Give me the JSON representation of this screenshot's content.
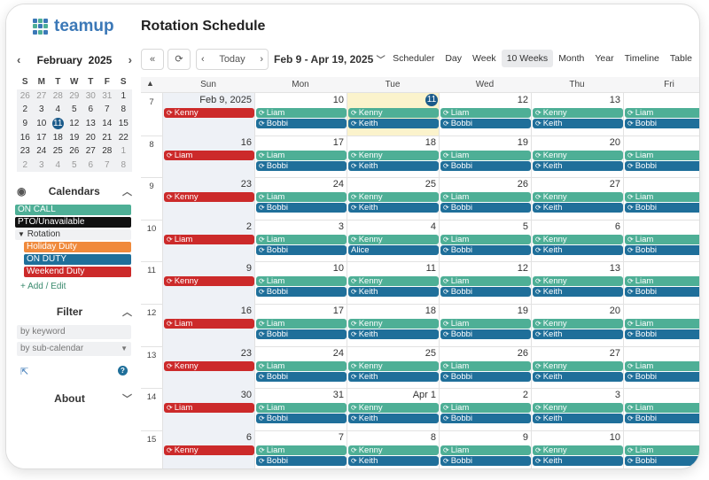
{
  "app": {
    "logo_text": "teamup",
    "page_title": "Rotation Schedule"
  },
  "colors": {
    "on_call": "#4eaf96",
    "pto": "#111111",
    "holiday_duty": "#f08a3c",
    "on_duty": "#1f6f9a",
    "weekend_duty": "#cc2a2a",
    "today": "#1a5a8a",
    "highlight": "#fbf3cc"
  },
  "mini_calendar": {
    "month": "February",
    "year": "2025",
    "dows": [
      "S",
      "M",
      "T",
      "W",
      "T",
      "F",
      "S"
    ],
    "weeks": [
      [
        {
          "d": "26",
          "o": true
        },
        {
          "d": "27",
          "o": true
        },
        {
          "d": "28",
          "o": true
        },
        {
          "d": "29",
          "o": true
        },
        {
          "d": "30",
          "o": true
        },
        {
          "d": "31",
          "o": true
        },
        {
          "d": "1"
        }
      ],
      [
        {
          "d": "2"
        },
        {
          "d": "3"
        },
        {
          "d": "4"
        },
        {
          "d": "5"
        },
        {
          "d": "6"
        },
        {
          "d": "7"
        },
        {
          "d": "8"
        }
      ],
      [
        {
          "d": "9"
        },
        {
          "d": "10"
        },
        {
          "d": "11",
          "t": true
        },
        {
          "d": "12"
        },
        {
          "d": "13"
        },
        {
          "d": "14"
        },
        {
          "d": "15"
        }
      ],
      [
        {
          "d": "16"
        },
        {
          "d": "17"
        },
        {
          "d": "18"
        },
        {
          "d": "19"
        },
        {
          "d": "20"
        },
        {
          "d": "21"
        },
        {
          "d": "22"
        }
      ],
      [
        {
          "d": "23"
        },
        {
          "d": "24"
        },
        {
          "d": "25"
        },
        {
          "d": "26"
        },
        {
          "d": "27"
        },
        {
          "d": "28"
        },
        {
          "d": "1",
          "o": true
        }
      ],
      [
        {
          "d": "2",
          "o": true
        },
        {
          "d": "3",
          "o": true
        },
        {
          "d": "4",
          "o": true
        },
        {
          "d": "5",
          "o": true
        },
        {
          "d": "6",
          "o": true
        },
        {
          "d": "7",
          "o": true
        },
        {
          "d": "8",
          "o": true
        }
      ]
    ]
  },
  "calendars": {
    "title": "Calendars",
    "items": {
      "on_call": "ON CALL",
      "pto": "PTO/Unavailable",
      "rotation": "Rotation",
      "holiday_duty": "Holiday Duty",
      "on_duty": "ON DUTY",
      "weekend_duty": "Weekend Duty"
    },
    "add_edit": "+ Add / Edit"
  },
  "filter": {
    "title": "Filter",
    "keyword_placeholder": "by keyword",
    "subcal_placeholder": "by sub-calendar"
  },
  "about": {
    "title": "About"
  },
  "toolbar": {
    "today": "Today",
    "date_range": "Feb 9 - Apr 19, 2025",
    "views": [
      "Scheduler",
      "Day",
      "Week",
      "10 Weeks",
      "Month",
      "Year",
      "Timeline",
      "Table"
    ],
    "active_view": "10 Weeks"
  },
  "grid": {
    "headers": [
      "Sun",
      "Mon",
      "Tue",
      "Wed",
      "Thu",
      "Fri"
    ],
    "weeks": [
      {
        "wk": "7",
        "days": [
          {
            "n": "Feb 9, 2025",
            "ev": [
              {
                "t": "Kenny",
                "c": "red"
              }
            ]
          },
          {
            "n": "10",
            "ev": [
              {
                "t": "Liam",
                "c": "green"
              },
              {
                "t": "Bobbi",
                "c": "blue"
              }
            ]
          },
          {
            "n": "11",
            "today": true,
            "ev": [
              {
                "t": "Kenny",
                "c": "green"
              },
              {
                "t": "Keith",
                "c": "blue"
              }
            ]
          },
          {
            "n": "12",
            "ev": [
              {
                "t": "Liam",
                "c": "green"
              },
              {
                "t": "Bobbi",
                "c": "blue"
              }
            ]
          },
          {
            "n": "13",
            "ev": [
              {
                "t": "Kenny",
                "c": "green"
              },
              {
                "t": "Keith",
                "c": "blue"
              }
            ]
          },
          {
            "n": "",
            "ev": [
              {
                "t": "Liam",
                "c": "green"
              },
              {
                "t": "Bobbi",
                "c": "blue"
              }
            ]
          }
        ]
      },
      {
        "wk": "8",
        "days": [
          {
            "n": "16",
            "ev": [
              {
                "t": "Liam",
                "c": "red"
              }
            ]
          },
          {
            "n": "17",
            "ev": [
              {
                "t": "Liam",
                "c": "green"
              },
              {
                "t": "Bobbi",
                "c": "blue"
              }
            ]
          },
          {
            "n": "18",
            "ev": [
              {
                "t": "Kenny",
                "c": "green"
              },
              {
                "t": "Keith",
                "c": "blue"
              }
            ]
          },
          {
            "n": "19",
            "ev": [
              {
                "t": "Liam",
                "c": "green"
              },
              {
                "t": "Bobbi",
                "c": "blue"
              }
            ]
          },
          {
            "n": "20",
            "ev": [
              {
                "t": "Kenny",
                "c": "green"
              },
              {
                "t": "Keith",
                "c": "blue"
              }
            ]
          },
          {
            "n": "",
            "ev": [
              {
                "t": "Liam",
                "c": "green"
              },
              {
                "t": "Bobbi",
                "c": "blue"
              }
            ]
          }
        ]
      },
      {
        "wk": "9",
        "days": [
          {
            "n": "23",
            "ev": [
              {
                "t": "Kenny",
                "c": "red"
              }
            ]
          },
          {
            "n": "24",
            "ev": [
              {
                "t": "Liam",
                "c": "green"
              },
              {
                "t": "Bobbi",
                "c": "blue"
              }
            ]
          },
          {
            "n": "25",
            "ev": [
              {
                "t": "Kenny",
                "c": "green"
              },
              {
                "t": "Keith",
                "c": "blue"
              }
            ]
          },
          {
            "n": "26",
            "ev": [
              {
                "t": "Liam",
                "c": "green"
              },
              {
                "t": "Bobbi",
                "c": "blue"
              }
            ]
          },
          {
            "n": "27",
            "ev": [
              {
                "t": "Kenny",
                "c": "green"
              },
              {
                "t": "Keith",
                "c": "blue"
              }
            ]
          },
          {
            "n": "",
            "ev": [
              {
                "t": "Liam",
                "c": "green"
              },
              {
                "t": "Bobbi",
                "c": "blue"
              }
            ]
          }
        ]
      },
      {
        "wk": "10",
        "days": [
          {
            "n": "2",
            "ev": [
              {
                "t": "Liam",
                "c": "red"
              }
            ]
          },
          {
            "n": "3",
            "ev": [
              {
                "t": "Liam",
                "c": "green"
              },
              {
                "t": "Bobbi",
                "c": "blue"
              }
            ]
          },
          {
            "n": "4",
            "ev": [
              {
                "t": "Kenny",
                "c": "green"
              },
              {
                "t": "Alice",
                "c": "blue",
                "noicon": true
              }
            ]
          },
          {
            "n": "5",
            "ev": [
              {
                "t": "Liam",
                "c": "green"
              },
              {
                "t": "Bobbi",
                "c": "blue"
              }
            ]
          },
          {
            "n": "6",
            "ev": [
              {
                "t": "Kenny",
                "c": "green"
              },
              {
                "t": "Keith",
                "c": "blue"
              }
            ]
          },
          {
            "n": "",
            "ev": [
              {
                "t": "Liam",
                "c": "green"
              },
              {
                "t": "Bobbi",
                "c": "blue"
              }
            ]
          }
        ]
      },
      {
        "wk": "11",
        "days": [
          {
            "n": "9",
            "ev": [
              {
                "t": "Kenny",
                "c": "red"
              }
            ]
          },
          {
            "n": "10",
            "ev": [
              {
                "t": "Liam",
                "c": "green"
              },
              {
                "t": "Bobbi",
                "c": "blue"
              }
            ]
          },
          {
            "n": "11",
            "ev": [
              {
                "t": "Kenny",
                "c": "green"
              },
              {
                "t": "Keith",
                "c": "blue"
              }
            ]
          },
          {
            "n": "12",
            "ev": [
              {
                "t": "Liam",
                "c": "green"
              },
              {
                "t": "Bobbi",
                "c": "blue"
              }
            ]
          },
          {
            "n": "13",
            "ev": [
              {
                "t": "Kenny",
                "c": "green"
              },
              {
                "t": "Keith",
                "c": "blue"
              }
            ]
          },
          {
            "n": "",
            "ev": [
              {
                "t": "Liam",
                "c": "green"
              },
              {
                "t": "Bobbi",
                "c": "blue"
              }
            ]
          }
        ]
      },
      {
        "wk": "12",
        "days": [
          {
            "n": "16",
            "ev": [
              {
                "t": "Liam",
                "c": "red"
              }
            ]
          },
          {
            "n": "17",
            "ev": [
              {
                "t": "Liam",
                "c": "green"
              },
              {
                "t": "Bobbi",
                "c": "blue"
              }
            ]
          },
          {
            "n": "18",
            "ev": [
              {
                "t": "Kenny",
                "c": "green"
              },
              {
                "t": "Keith",
                "c": "blue"
              }
            ]
          },
          {
            "n": "19",
            "ev": [
              {
                "t": "Liam",
                "c": "green"
              },
              {
                "t": "Bobbi",
                "c": "blue"
              }
            ]
          },
          {
            "n": "20",
            "ev": [
              {
                "t": "Kenny",
                "c": "green"
              },
              {
                "t": "Keith",
                "c": "blue"
              }
            ]
          },
          {
            "n": "",
            "ev": [
              {
                "t": "Liam",
                "c": "green"
              },
              {
                "t": "Bobbi",
                "c": "blue"
              }
            ]
          }
        ]
      },
      {
        "wk": "13",
        "days": [
          {
            "n": "23",
            "ev": [
              {
                "t": "Kenny",
                "c": "red"
              }
            ]
          },
          {
            "n": "24",
            "ev": [
              {
                "t": "Liam",
                "c": "green"
              },
              {
                "t": "Bobbi",
                "c": "blue"
              }
            ]
          },
          {
            "n": "25",
            "ev": [
              {
                "t": "Kenny",
                "c": "green"
              },
              {
                "t": "Keith",
                "c": "blue"
              }
            ]
          },
          {
            "n": "26",
            "ev": [
              {
                "t": "Liam",
                "c": "green"
              },
              {
                "t": "Bobbi",
                "c": "blue"
              }
            ]
          },
          {
            "n": "27",
            "ev": [
              {
                "t": "Kenny",
                "c": "green"
              },
              {
                "t": "Keith",
                "c": "blue"
              }
            ]
          },
          {
            "n": "",
            "ev": [
              {
                "t": "Liam",
                "c": "green"
              },
              {
                "t": "Bobbi",
                "c": "blue"
              }
            ]
          }
        ]
      },
      {
        "wk": "14",
        "days": [
          {
            "n": "30",
            "ev": [
              {
                "t": "Liam",
                "c": "red"
              }
            ]
          },
          {
            "n": "31",
            "ev": [
              {
                "t": "Liam",
                "c": "green"
              },
              {
                "t": "Bobbi",
                "c": "blue"
              }
            ]
          },
          {
            "n": "Apr 1",
            "ev": [
              {
                "t": "Kenny",
                "c": "green"
              },
              {
                "t": "Keith",
                "c": "blue"
              }
            ]
          },
          {
            "n": "2",
            "ev": [
              {
                "t": "Liam",
                "c": "green"
              },
              {
                "t": "Bobbi",
                "c": "blue"
              }
            ]
          },
          {
            "n": "3",
            "ev": [
              {
                "t": "Kenny",
                "c": "green"
              },
              {
                "t": "Keith",
                "c": "blue"
              }
            ]
          },
          {
            "n": "",
            "ev": [
              {
                "t": "Liam",
                "c": "green"
              },
              {
                "t": "Bobbi",
                "c": "blue"
              }
            ]
          }
        ]
      },
      {
        "wk": "15",
        "days": [
          {
            "n": "6",
            "ev": [
              {
                "t": "Kenny",
                "c": "red"
              }
            ]
          },
          {
            "n": "7",
            "ev": [
              {
                "t": "Liam",
                "c": "green"
              },
              {
                "t": "Bobbi",
                "c": "blue"
              }
            ]
          },
          {
            "n": "8",
            "ev": [
              {
                "t": "Kenny",
                "c": "green"
              },
              {
                "t": "Keith",
                "c": "blue"
              }
            ]
          },
          {
            "n": "9",
            "ev": [
              {
                "t": "Liam",
                "c": "green"
              },
              {
                "t": "Bobbi",
                "c": "blue"
              }
            ]
          },
          {
            "n": "10",
            "ev": [
              {
                "t": "Kenny",
                "c": "green"
              },
              {
                "t": "Keith",
                "c": "blue"
              }
            ]
          },
          {
            "n": "",
            "ev": [
              {
                "t": "Liam",
                "c": "green"
              },
              {
                "t": "Bobbi",
                "c": "blue"
              }
            ]
          }
        ]
      }
    ]
  }
}
